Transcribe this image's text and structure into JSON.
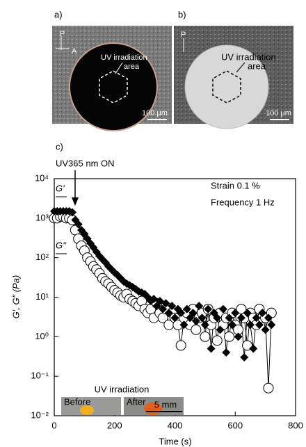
{
  "images": [
    {
      "label": "a)",
      "polarizer": "P",
      "analyzer": "A",
      "annotation": [
        "UV irradiation",
        "area"
      ],
      "scale": "100 μm"
    },
    {
      "label": "b)",
      "polarizer": "P",
      "annotation": [
        "UV irradiation",
        "area"
      ],
      "scale": "100 μm"
    }
  ],
  "chart_data": {
    "type": "scatter",
    "panel_label": "c)",
    "xlabel": "Time (s)",
    "ylabel": "G′, G″ (Pa)",
    "annotations": [
      "UV365 nm ON",
      "Strain 0.1 %",
      "Frequency 1 Hz"
    ],
    "inset": {
      "title": "UV irradiation",
      "labels": [
        "Before",
        "After"
      ],
      "scale": "5 mm"
    },
    "xlim": [
      0,
      800
    ],
    "xticks": [
      0,
      200,
      400,
      600,
      800
    ],
    "ylim": [
      0.01,
      10000
    ],
    "log_y": true,
    "yticks": [
      {
        "value": 0.01,
        "label": "10⁻²"
      },
      {
        "value": 0.1,
        "label": "10⁻¹"
      },
      {
        "value": 1,
        "label": "10⁰"
      },
      {
        "value": 10,
        "label": "10¹"
      },
      {
        "value": 100,
        "label": "10²"
      },
      {
        "value": 1000,
        "label": "10³"
      },
      {
        "value": 10000,
        "label": "10⁴"
      }
    ],
    "x": [
      0,
      10,
      20,
      30,
      40,
      50,
      60,
      70,
      80,
      90,
      100,
      110,
      120,
      130,
      140,
      150,
      160,
      170,
      180,
      190,
      200,
      210,
      220,
      230,
      240,
      250,
      260,
      270,
      280,
      290,
      300,
      310,
      320,
      330,
      340,
      350,
      360,
      370,
      380,
      390,
      400,
      410,
      420,
      430,
      440,
      450,
      460,
      470,
      480,
      490,
      500,
      510,
      520,
      530,
      540,
      550,
      560,
      570,
      580,
      590,
      600,
      610,
      620,
      630,
      640,
      650,
      660,
      670,
      680,
      690,
      700,
      710,
      720
    ],
    "series": [
      {
        "name": "G''",
        "color": "#000000",
        "marker": "circle",
        "values": [
          1000,
          1000,
          1100,
          1100,
          1000,
          1000,
          900,
          500,
          300,
          200,
          150,
          100,
          80,
          60,
          50,
          40,
          30,
          25,
          22,
          18,
          15,
          13,
          11,
          10,
          12,
          9,
          8,
          7,
          6,
          8,
          5,
          4,
          5,
          3,
          7,
          4,
          3,
          5,
          2,
          4,
          3,
          2,
          0.6,
          3,
          4,
          2,
          5,
          1.5,
          3,
          4,
          1,
          5,
          2,
          3,
          0.8,
          4,
          2,
          3,
          1,
          4,
          2,
          1.5,
          5,
          3,
          0.6,
          4,
          3,
          2,
          5,
          3,
          3,
          0.05,
          4
        ]
      },
      {
        "name": "G'",
        "color": "#000000",
        "marker": "diamond",
        "values": [
          1500,
          1500,
          1500,
          1500,
          1500,
          1500,
          1400,
          900,
          700,
          500,
          400,
          300,
          230,
          180,
          140,
          110,
          90,
          75,
          60,
          50,
          42,
          36,
          30,
          25,
          22,
          20,
          18,
          16,
          14,
          13,
          12,
          10,
          8,
          9,
          6,
          8,
          5,
          7,
          4,
          6,
          3,
          5,
          4,
          2,
          5,
          3,
          4,
          2.5,
          6,
          3,
          2,
          5,
          0.5,
          4,
          3,
          1.5,
          5,
          0.4,
          3,
          2,
          4,
          1,
          3,
          0.3,
          4,
          2,
          0.5,
          3,
          2,
          4,
          1.5,
          3,
          2
        ]
      }
    ]
  }
}
